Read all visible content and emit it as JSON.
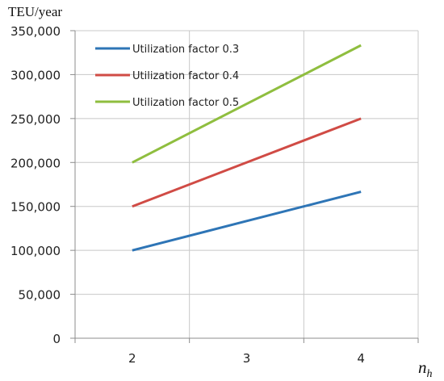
{
  "chart_data": {
    "type": "line",
    "ylabel": "TEU/year",
    "xlabel": "n",
    "xlabel_subscript": "h",
    "categories": [
      "2",
      "3",
      "4"
    ],
    "x": [
      2,
      3,
      4
    ],
    "ylim": [
      0,
      350000
    ],
    "yticks": [
      "0",
      "50,000",
      "100,000",
      "150,000",
      "200,000",
      "250,000",
      "300,000",
      "350,000"
    ],
    "ytick_values": [
      0,
      50000,
      100000,
      150000,
      200000,
      250000,
      300000,
      350000
    ],
    "grid": true,
    "legend_position": "top-left",
    "series": [
      {
        "name": "Utilization factor 0.3",
        "color": "#2e75b6",
        "values": [
          100000,
          133333,
          166667
        ]
      },
      {
        "name": "Utilization factor 0.4",
        "color": "#d04b45",
        "values": [
          150000,
          200000,
          250000
        ]
      },
      {
        "name": "Utilization factor 0.5",
        "color": "#8fbe3f",
        "values": [
          200000,
          266667,
          333333
        ]
      }
    ]
  }
}
